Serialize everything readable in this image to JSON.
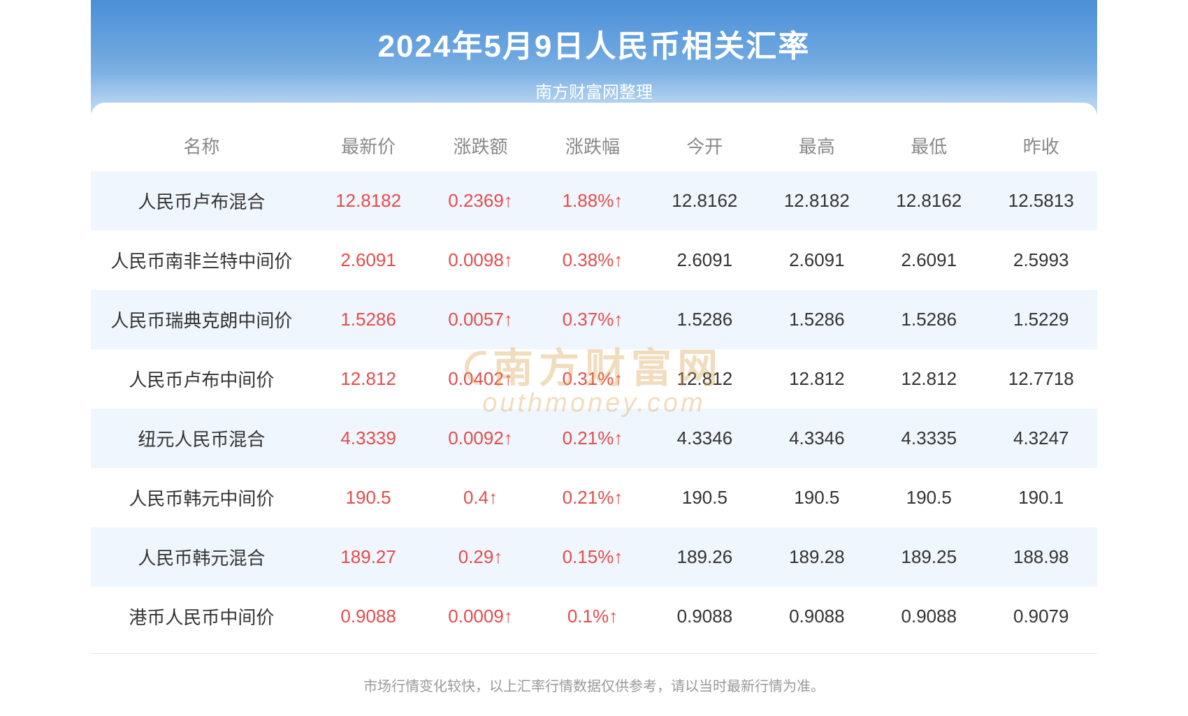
{
  "header": {
    "title": "2024年5月9日人民币相关汇率",
    "subtitle": "南方财富网整理"
  },
  "table": {
    "columns": [
      "名称",
      "最新价",
      "涨跌额",
      "涨跌幅",
      "今开",
      "最高",
      "最低",
      "昨收"
    ],
    "rows": [
      {
        "name": "人民币卢布混合",
        "latest": "12.8182",
        "change_amt": "0.2369↑",
        "change_pct": "1.88%↑",
        "open": "12.8162",
        "high": "12.8182",
        "low": "12.8162",
        "prev": "12.5813"
      },
      {
        "name": "人民币南非兰特中间价",
        "latest": "2.6091",
        "change_amt": "0.0098↑",
        "change_pct": "0.38%↑",
        "open": "2.6091",
        "high": "2.6091",
        "low": "2.6091",
        "prev": "2.5993"
      },
      {
        "name": "人民币瑞典克朗中间价",
        "latest": "1.5286",
        "change_amt": "0.0057↑",
        "change_pct": "0.37%↑",
        "open": "1.5286",
        "high": "1.5286",
        "low": "1.5286",
        "prev": "1.5229"
      },
      {
        "name": "人民币卢布中间价",
        "latest": "12.812",
        "change_amt": "0.0402↑",
        "change_pct": "0.31%↑",
        "open": "12.812",
        "high": "12.812",
        "low": "12.812",
        "prev": "12.7718"
      },
      {
        "name": "纽元人民币混合",
        "latest": "4.3339",
        "change_amt": "0.0092↑",
        "change_pct": "0.21%↑",
        "open": "4.3346",
        "high": "4.3346",
        "low": "4.3335",
        "prev": "4.3247"
      },
      {
        "name": "人民币韩元中间价",
        "latest": "190.5",
        "change_amt": "0.4↑",
        "change_pct": "0.21%↑",
        "open": "190.5",
        "high": "190.5",
        "low": "190.5",
        "prev": "190.1"
      },
      {
        "name": "人民币韩元混合",
        "latest": "189.27",
        "change_amt": "0.29↑",
        "change_pct": "0.15%↑",
        "open": "189.26",
        "high": "189.28",
        "low": "189.25",
        "prev": "188.98"
      },
      {
        "name": "港币人民币中间价",
        "latest": "0.9088",
        "change_amt": "0.0009↑",
        "change_pct": "0.1%↑",
        "open": "0.9088",
        "high": "0.9088",
        "low": "0.9088",
        "prev": "0.9079"
      }
    ]
  },
  "footer": {
    "note": "市场行情变化较快，以上汇率行情数据仅供参考，请以当时最新行情为准。"
  },
  "watermark": {
    "cn": "南方财富网",
    "en": "outhmoney.com"
  },
  "styling": {
    "header_gradient_top": "#4a8fd8",
    "header_gradient_bottom": "#a8cdf0",
    "title_color": "#ffffff",
    "title_fontsize": 44,
    "subtitle_fontsize": 24,
    "table_header_color": "#888888",
    "table_fontsize": 26,
    "row_odd_bg": "#f0f6fd",
    "row_even_bg": "#ffffff",
    "positive_color": "#e44c4c",
    "text_color": "#333333",
    "footer_color": "#999999",
    "footer_fontsize": 20,
    "watermark_color": "#d8a048",
    "border_color": "#e5e5e5"
  }
}
